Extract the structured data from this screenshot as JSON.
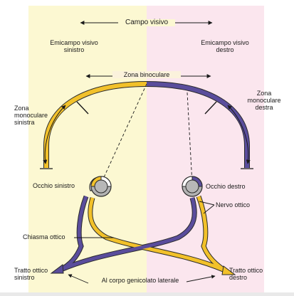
{
  "diagram": {
    "labels": {
      "visual_field": "Campo visivo",
      "left_hemifield": "Emicampo visivo\nsinistro",
      "right_hemifield": "Emicampo visivo\ndestro",
      "binocular_zone": "Zona binoculare",
      "left_monocular": "Zona\nmonoculare\nsinistra",
      "right_monocular": "Zona\nmonoculare\ndestra",
      "left_eye": "Occhio sinistro",
      "right_eye": "Occhio destro",
      "optic_nerve": "Nervo ottico",
      "optic_chiasm": "Chiasma ottico",
      "left_tract": "Tratto ottico\nsinistro",
      "right_tract": "Tratto ottico\ndestro",
      "lgn": "Al corpo genicolato laterale"
    },
    "colors": {
      "left_field_bg": "#fcf8d2",
      "right_field_bg": "#fbe6ee",
      "left_field_arc": "#f2c12a",
      "right_field_arc": "#5a4d9c",
      "fiber_outline": "#2a2a2a",
      "lens_shadow": "#a7a7a7"
    }
  }
}
